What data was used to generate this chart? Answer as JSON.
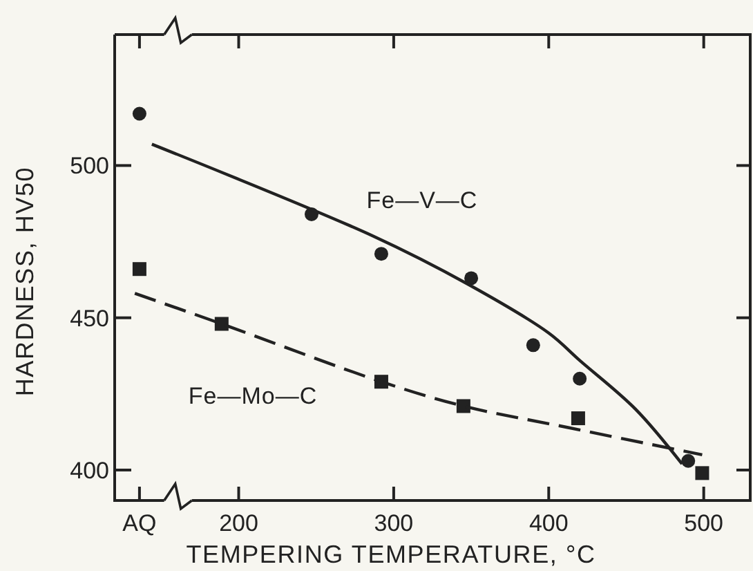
{
  "chart_data": {
    "type": "scatter",
    "xlabel": "TEMPERING TEMPERATURE, °C",
    "ylabel": "HARDNESS, HV50",
    "xlim": [
      120,
      530
    ],
    "ylim": [
      390,
      543
    ],
    "xticks": [
      {
        "value": 136,
        "label": "AQ"
      },
      200,
      300,
      400,
      500
    ],
    "yticks": [
      400,
      450,
      500
    ],
    "grid": false,
    "series": [
      {
        "marker": "circle",
        "color": "#222222",
        "x": [
          136,
          247,
          292,
          350,
          390,
          420,
          490
        ],
        "values": [
          517,
          484,
          471,
          463,
          441,
          430,
          403
        ]
      },
      {
        "marker": "square",
        "color": "#222222",
        "x": [
          136,
          189,
          292,
          345,
          419,
          499
        ],
        "values": [
          466,
          448,
          429,
          421,
          417,
          399
        ]
      },
      {
        "type": "line",
        "name": "Fe—V—C",
        "marker": "none",
        "line_style": "solid",
        "color": "#222222",
        "x": [
          144,
          286,
          348,
          400,
          420,
          456,
          486
        ],
        "values": [
          507,
          477,
          461,
          445,
          436,
          420,
          402
        ]
      },
      {
        "type": "line",
        "name": "Fe—Mo—C",
        "marker": "none",
        "line_style": "dashed",
        "color": "#222222",
        "x": [
          133,
          189,
          292,
          345,
          412,
          499
        ],
        "values": [
          458,
          448,
          429,
          421,
          414,
          405
        ]
      }
    ]
  }
}
